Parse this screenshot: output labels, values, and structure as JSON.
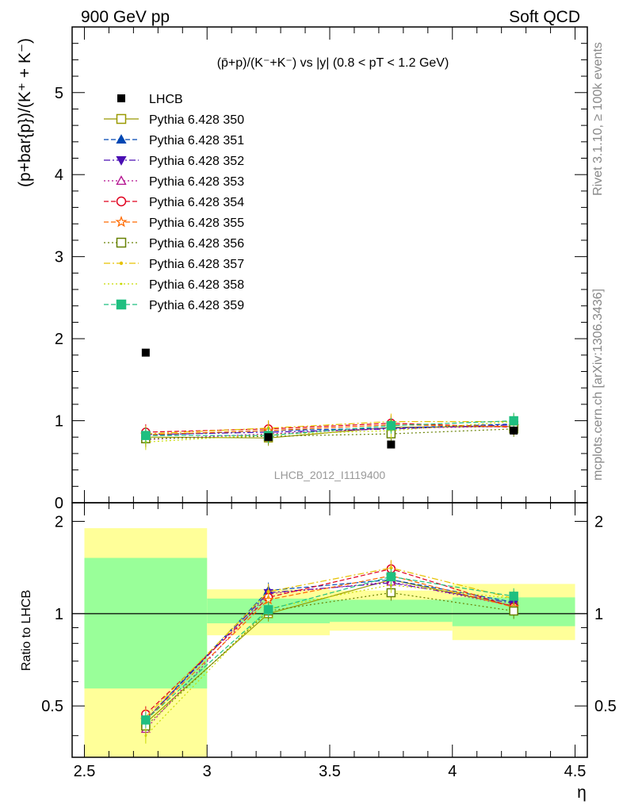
{
  "header": {
    "left": "900 GeV pp",
    "right": "Soft QCD"
  },
  "side_labels": {
    "rivet": "Rivet 3.1.10, ≥ 100k events",
    "mcplots": "mcplots.cern.ch [arXiv:1306.3436]"
  },
  "colors": {
    "band_inner": "#99ff99",
    "band_outer": "#ffff99",
    "frame": "#000000"
  },
  "chart_data": [
    {
      "type": "scatter",
      "panel": "main",
      "title": "(p̄+p)/(K⁻+K⁻) vs |y| (0.8 < pT < 1.2 GeV)",
      "ylabel": "(p+bar{p})/(K⁺ + K⁻)",
      "ylim": [
        0,
        5.8
      ],
      "yticks": [
        0,
        1,
        2,
        3,
        4,
        5
      ],
      "watermark": "LHCB_2012_I1119400",
      "legend_position": "top-left",
      "x": [
        2.75,
        3.25,
        3.75,
        4.25
      ],
      "reference": {
        "name": "LHCB",
        "values": [
          1.83,
          0.8,
          0.71,
          0.88
        ],
        "errors": [
          0.02,
          0.02,
          0.02,
          0.02
        ]
      },
      "series": [
        {
          "name": "Pythia 6.428 350",
          "color": "#999900",
          "marker": "square-open",
          "dash": "solid",
          "values": [
            0.8,
            0.79,
            0.92,
            0.93
          ]
        },
        {
          "name": "Pythia 6.428 351",
          "color": "#0047b3",
          "marker": "triangle-up",
          "dash": "dashed",
          "values": [
            0.82,
            0.88,
            0.91,
            0.96
          ]
        },
        {
          "name": "Pythia 6.428 352",
          "color": "#4a0fb3",
          "marker": "triangle-down",
          "dash": "dashdot",
          "values": [
            0.83,
            0.86,
            0.9,
            0.95
          ]
        },
        {
          "name": "Pythia 6.428 353",
          "color": "#b30f8f",
          "marker": "triangle-up-open",
          "dash": "dotted",
          "values": [
            0.77,
            0.84,
            0.91,
            0.93
          ]
        },
        {
          "name": "Pythia 6.428 354",
          "color": "#e0001e",
          "marker": "circle-open",
          "dash": "dashed",
          "values": [
            0.86,
            0.9,
            0.97,
            0.92
          ]
        },
        {
          "name": "Pythia 6.428 355",
          "color": "#ff6a00",
          "marker": "star-open",
          "dash": "dashed",
          "values": [
            0.83,
            0.88,
            0.95,
            0.93
          ]
        },
        {
          "name": "Pythia 6.428 356",
          "color": "#668000",
          "marker": "square-open",
          "dash": "dotted",
          "values": [
            0.78,
            0.81,
            0.84,
            0.9
          ]
        },
        {
          "name": "Pythia 6.428 357",
          "color": "#e6c200",
          "marker": "dot",
          "dash": "dashdot",
          "values": [
            0.84,
            0.91,
            0.99,
            0.99
          ]
        },
        {
          "name": "Pythia 6.428 358",
          "color": "#c8d900",
          "marker": "dot-small",
          "dash": "dotted",
          "values": [
            0.74,
            0.83,
            0.88,
            0.99
          ]
        },
        {
          "name": "Pythia 6.428 359",
          "color": "#1fbf80",
          "marker": "square",
          "dash": "dashed",
          "values": [
            0.82,
            0.82,
            0.94,
            1.0
          ]
        }
      ]
    },
    {
      "type": "scatter",
      "panel": "ratio",
      "ylabel": "Ratio to LHCB",
      "xlabel": "η",
      "xlim": [
        2.45,
        4.55
      ],
      "xticks": [
        2.5,
        3,
        3.5,
        4,
        4.5
      ],
      "ylim": [
        0.34,
        2.3
      ],
      "yticks": [
        0.5,
        1,
        2
      ],
      "yscale": "log",
      "bands": [
        {
          "x": [
            2.5,
            3.0
          ],
          "inner": [
            0.57,
            1.52
          ],
          "outer": [
            0.34,
            1.9
          ]
        },
        {
          "x": [
            3.0,
            3.5
          ],
          "inner": [
            0.93,
            1.12
          ],
          "outer": [
            0.85,
            1.2
          ]
        },
        {
          "x": [
            3.5,
            4.0
          ],
          "inner": [
            0.94,
            1.11
          ],
          "outer": [
            0.88,
            1.19
          ]
        },
        {
          "x": [
            4.0,
            4.5
          ],
          "inner": [
            0.91,
            1.13
          ],
          "outer": [
            0.82,
            1.25
          ]
        }
      ],
      "x": [
        2.75,
        3.25,
        3.75,
        4.25
      ],
      "series": [
        {
          "name": "Pythia 6.428 350",
          "values": [
            0.44,
            1.0,
            1.29,
            1.06
          ]
        },
        {
          "name": "Pythia 6.428 351",
          "values": [
            0.45,
            1.19,
            1.29,
            1.09
          ]
        },
        {
          "name": "Pythia 6.428 352",
          "values": [
            0.45,
            1.17,
            1.26,
            1.08
          ]
        },
        {
          "name": "Pythia 6.428 353",
          "values": [
            0.42,
            1.16,
            1.27,
            1.06
          ]
        },
        {
          "name": "Pythia 6.428 354",
          "values": [
            0.47,
            1.13,
            1.4,
            1.05
          ]
        },
        {
          "name": "Pythia 6.428 355",
          "values": [
            0.45,
            1.11,
            1.33,
            1.05
          ]
        },
        {
          "name": "Pythia 6.428 356",
          "values": [
            0.43,
            1.02,
            1.17,
            1.02
          ]
        },
        {
          "name": "Pythia 6.428 357",
          "values": [
            0.46,
            1.18,
            1.41,
            1.12
          ]
        },
        {
          "name": "Pythia 6.428 358",
          "values": [
            0.4,
            1.04,
            1.24,
            1.12
          ]
        },
        {
          "name": "Pythia 6.428 359",
          "values": [
            0.45,
            1.03,
            1.32,
            1.14
          ]
        }
      ]
    }
  ]
}
